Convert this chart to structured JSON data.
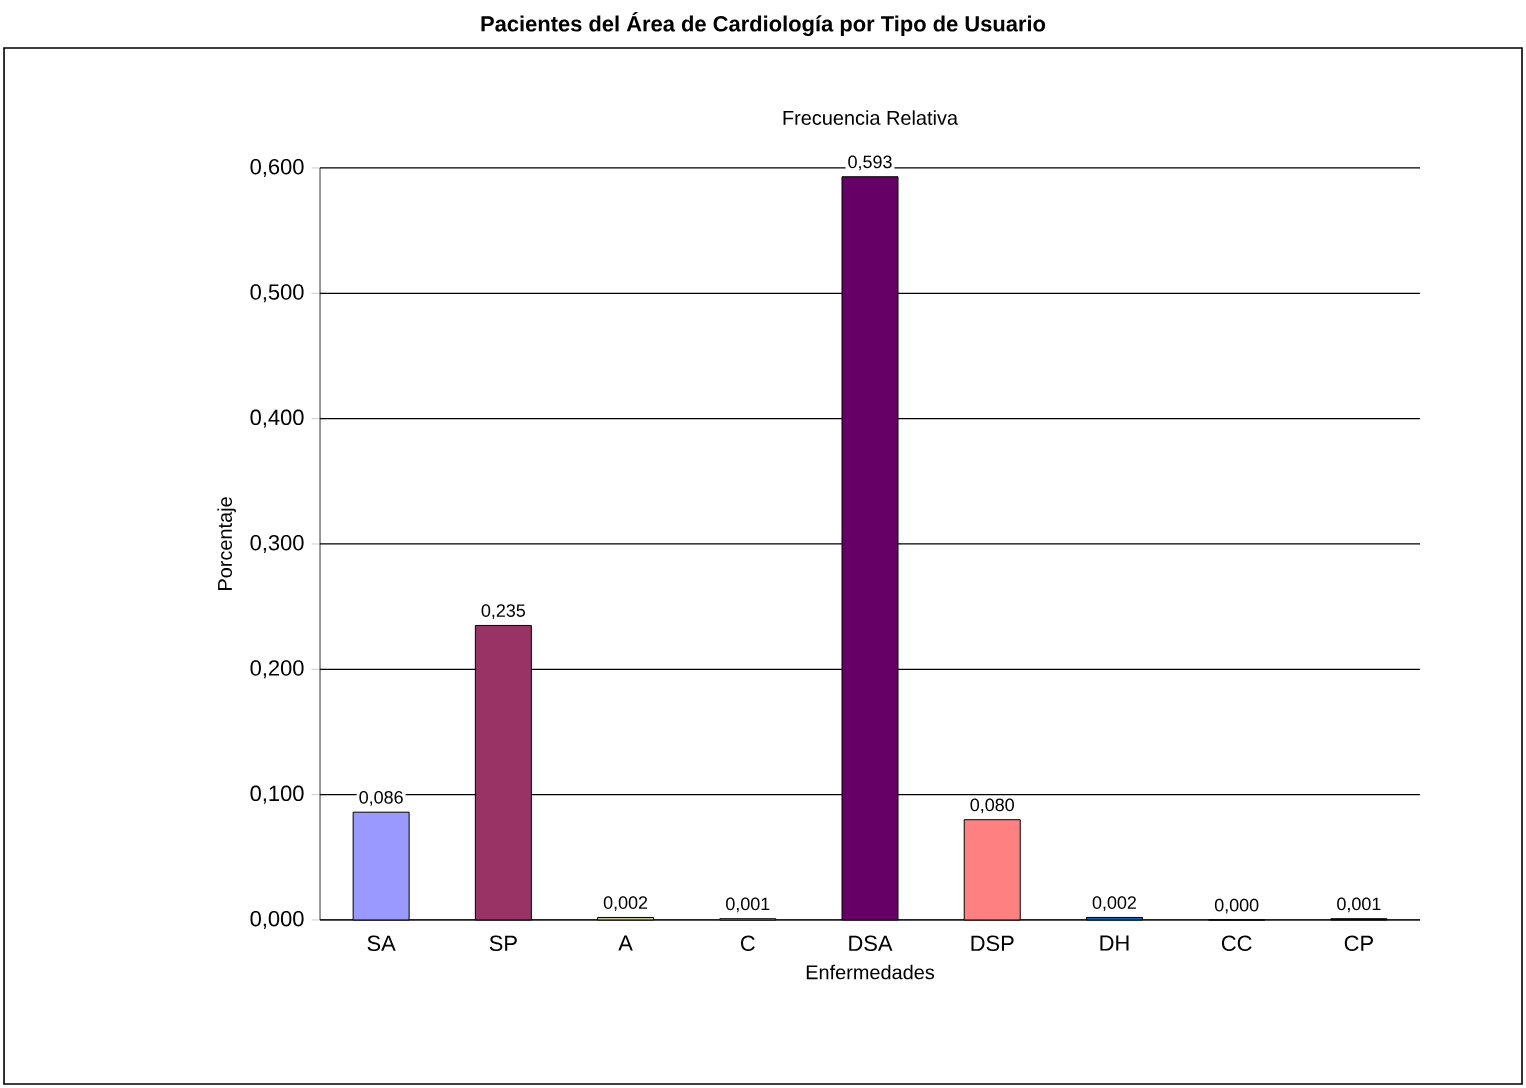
{
  "chart_data": {
    "type": "bar",
    "title": "Pacientes del Área de Cardiología por Tipo de Usuario",
    "subtitle": "Frecuencia Relativa",
    "xlabel": "Enfermedades",
    "ylabel": "Porcentaje",
    "categories": [
      "SA",
      "SP",
      "A",
      "C",
      "DSA",
      "DSP",
      "DH",
      "CC",
      "CP"
    ],
    "values": [
      0.086,
      0.235,
      0.002,
      0.001,
      0.593,
      0.08,
      0.002,
      0.0,
      0.001
    ],
    "value_labels": [
      "0,086",
      "0,235",
      "0,002",
      "0,001",
      "0,593",
      "0,080",
      "0,002",
      "0,000",
      "0,001"
    ],
    "colors": [
      "#9999ff",
      "#993366",
      "#cccc99",
      "#99cccc",
      "#660066",
      "#ff8080",
      "#0066cc",
      "#9999cc",
      "#000080"
    ],
    "ylim": [
      0,
      0.6
    ],
    "yticks": [
      {
        "value": 0,
        "label": "0,000"
      },
      {
        "value": 0.1,
        "label": "0,100"
      },
      {
        "value": 0.2,
        "label": "0,200"
      },
      {
        "value": 0.3,
        "label": "0,300"
      },
      {
        "value": 0.4,
        "label": "0,400"
      },
      {
        "value": 0.5,
        "label": "0,500"
      },
      {
        "value": 0.6,
        "label": "0,600"
      }
    ],
    "grid": "y"
  }
}
